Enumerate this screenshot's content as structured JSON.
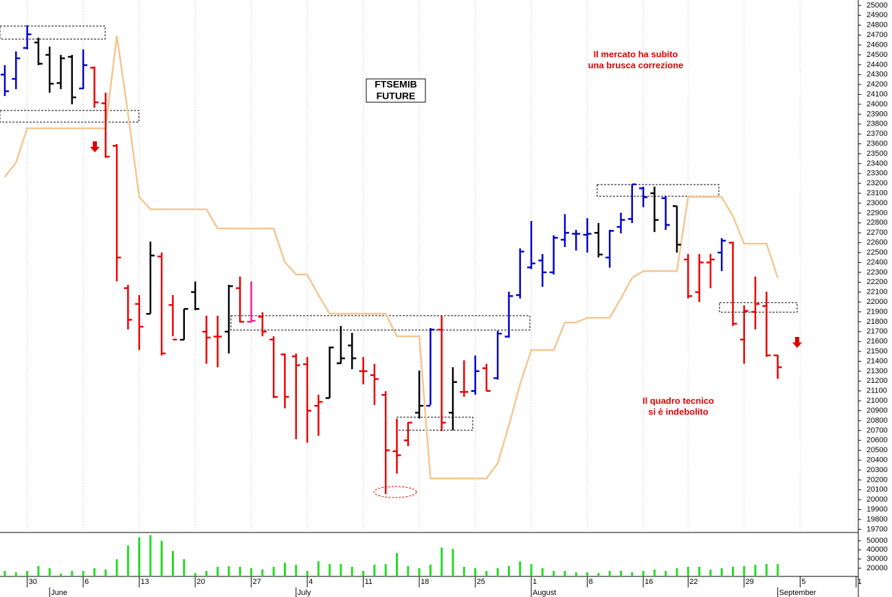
{
  "chart_data": {
    "type": "ohlc",
    "categories": [
      null,
      null,
      "30",
      null,
      null,
      null,
      null,
      "6",
      null,
      null,
      null,
      null,
      "13",
      null,
      null,
      null,
      null,
      "20",
      null,
      null,
      null,
      null,
      "27",
      null,
      null,
      null,
      null,
      "4",
      null,
      null,
      null,
      null,
      "11",
      null,
      null,
      null,
      null,
      "18",
      null,
      null,
      null,
      null,
      "25",
      null,
      null,
      null,
      null,
      "1",
      null,
      null,
      null,
      null,
      "8",
      null,
      null,
      null,
      null,
      "16",
      null,
      null,
      null,
      "22",
      null,
      null,
      null,
      null,
      "29",
      null,
      null,
      null,
      null,
      "5",
      null,
      null,
      null,
      null,
      "1"
    ],
    "months": [
      null,
      null,
      null,
      null,
      "June",
      null,
      null,
      null,
      null,
      null,
      null,
      null,
      null,
      null,
      null,
      null,
      null,
      null,
      null,
      null,
      null,
      null,
      null,
      null,
      null,
      null,
      "July",
      null,
      null,
      null,
      null,
      null,
      null,
      null,
      null,
      null,
      null,
      null,
      null,
      null,
      null,
      null,
      null,
      null,
      null,
      null,
      null,
      "August",
      null,
      null,
      null,
      null,
      null,
      null,
      null,
      null,
      null,
      null,
      null,
      null,
      null,
      null,
      null,
      null,
      null,
      null,
      null,
      null,
      null,
      "September",
      null,
      null,
      null,
      null,
      null,
      null,
      null
    ],
    "open": [
      24300,
      24257,
      24570,
      24625,
      24500,
      24215,
      24480,
      24160,
      24370,
      24010,
      23580,
      22140,
      21980,
      21880,
      22460,
      21970,
      21618,
      22100,
      21700,
      21650,
      21700,
      22140,
      21800,
      21850,
      21620,
      21470,
      21450,
      21370,
      20950,
      21028,
      21380,
      21560,
      21300,
      21260,
      21060,
      20490,
      20600,
      20880,
      20950,
      21720,
      20880,
      21090,
      21100,
      21330,
      21230,
      21650,
      22070,
      22350,
      22420,
      22300,
      22630,
      22690,
      22680,
      22700,
      22450,
      22760,
      22840,
      23150,
      23100,
      23050,
      22970,
      22430,
      22100,
      22400,
      22500,
      22600,
      21620,
      21900,
      21960,
      21460,
      null,
      null,
      null,
      null,
      null,
      null,
      null
    ],
    "high": [
      24396,
      24535,
      24799,
      24674,
      24583,
      24500,
      24500,
      24556,
      24382,
      24118,
      23597,
      22174,
      22070,
      22611,
      22500,
      22070,
      21930,
      22208,
      21861,
      21861,
      22174,
      22257,
      22208,
      21896,
      21653,
      21479,
      21479,
      21444,
      21062,
      21549,
      21757,
      21688,
      21444,
      21375,
      21097,
      20820,
      20785,
      21306,
      21736,
      21861,
      21340,
      21410,
      21458,
      21375,
      21708,
      22104,
      22542,
      22820,
      22486,
      22674,
      22889,
      22729,
      22847,
      22799,
      22729,
      22903,
      23194,
      23167,
      23167,
      23076,
      22972,
      22486,
      22486,
      22486,
      22646,
      22611,
      21965,
      22257,
      22104,
      21465,
      null,
      null,
      null,
      null,
      null,
      null,
      null
    ],
    "low": [
      24083,
      24153,
      24556,
      24396,
      24118,
      24153,
      24000,
      24153,
      23965,
      23458,
      22208,
      21722,
      21514,
      21882,
      21458,
      21653,
      21618,
      21917,
      21375,
      21340,
      21479,
      21792,
      21792,
      21653,
      21028,
      20924,
      20611,
      20576,
      20646,
      21028,
      21375,
      21320,
      21167,
      20958,
      20056,
      20264,
      20542,
      20820,
      20958,
      20695,
      20702,
      21042,
      21062,
      21097,
      21215,
      21639,
      22035,
      22333,
      22153,
      22278,
      22556,
      22521,
      22500,
      22451,
      22347,
      22694,
      22799,
      22958,
      22708,
      22729,
      22500,
      22035,
      22000,
      22139,
      22312,
      21757,
      21375,
      21722,
      21444,
      21222,
      null,
      null,
      null,
      null,
      null,
      null,
      null
    ],
    "close": [
      24132,
      24465,
      24708,
      24410,
      24208,
      24465,
      24070,
      24396,
      24020,
      23470,
      22450,
      21820,
      21750,
      22470,
      21480,
      21620,
      21930,
      21930,
      21640,
      21650,
      22160,
      21800,
      21810,
      21700,
      21040,
      21040,
      21360,
      20900,
      20990,
      21540,
      21430,
      21430,
      21300,
      21220,
      20500,
      20450,
      20780,
      20950,
      21720,
      20780,
      21190,
      21090,
      21300,
      21100,
      21680,
      22060,
      22510,
      22390,
      22300,
      22650,
      22700,
      22690,
      22690,
      22480,
      22720,
      22830,
      23190,
      23060,
      22830,
      22780,
      22580,
      22060,
      22400,
      22430,
      22620,
      21780,
      21910,
      21980,
      21460,
      21340,
      null,
      null,
      null,
      null,
      null,
      null,
      null
    ],
    "bar_colors": [
      "#0000cc",
      "#0000cc",
      "#0000cc",
      "#000000",
      "#000000",
      "#000000",
      "#000000",
      "#0000cc",
      "#ee0000",
      "#ee0000",
      "#ee0000",
      "#ee0000",
      "#ee0000",
      "#000000",
      "#ee0000",
      "#ee0000",
      "#000000",
      "#000000",
      "#ee0000",
      "#ee0000",
      "#000000",
      "#ee0000",
      "#ff1a8c",
      "#ee0000",
      "#ee0000",
      "#ee0000",
      "#ee0000",
      "#ee0000",
      "#ee0000",
      "#000000",
      "#000000",
      "#000000",
      "#ee0000",
      "#ee0000",
      "#ee0000",
      "#ee0000",
      "#ee0000",
      "#000000",
      "#0000cc",
      "#ee0000",
      "#000000",
      "#ee0000",
      "#0000cc",
      "#ee0000",
      "#0000cc",
      "#0000cc",
      "#0000cc",
      "#0000cc",
      "#0000cc",
      "#0000cc",
      "#0000cc",
      "#0000cc",
      "#0000cc",
      "#000000",
      "#0000cc",
      "#0000cc",
      "#0000cc",
      "#0000cc",
      "#000000",
      "#0000cc",
      "#000000",
      "#ee0000",
      "#ee0000",
      "#ee0000",
      "#0000cc",
      "#ee0000",
      "#ee0000",
      "#ee0000",
      "#ee0000",
      "#ee0000",
      null,
      null,
      null,
      null,
      null,
      null,
      null
    ],
    "line": {
      "color": "#f7c590",
      "values": [
        23264,
        23410,
        23757,
        23757,
        23757,
        23757,
        23757,
        23757,
        23757,
        23757,
        24694,
        23903,
        23063,
        22938,
        22938,
        22938,
        22938,
        22938,
        22938,
        22743,
        22743,
        22743,
        22743,
        22743,
        22743,
        22403,
        22278,
        22278,
        22069,
        21882,
        21882,
        21882,
        21882,
        21882,
        21882,
        21653,
        21653,
        21653,
        20215,
        20215,
        20215,
        20215,
        20215,
        20215,
        20368,
        20750,
        21167,
        21514,
        21514,
        21514,
        21792,
        21792,
        21840,
        21840,
        21840,
        22035,
        22243,
        22313,
        22313,
        22313,
        22313,
        23063,
        23063,
        23063,
        23063,
        22868,
        22590,
        22590,
        22590,
        22243,
        null,
        null,
        null,
        null,
        null,
        null,
        null
      ]
    },
    "ylim": [
      19675,
      25055
    ],
    "yticks": [
      25000,
      24900,
      24800,
      24700,
      24600,
      24500,
      24400,
      24300,
      24200,
      24100,
      24000,
      23900,
      23800,
      23700,
      23600,
      23500,
      23400,
      23300,
      23200,
      23100,
      23000,
      22900,
      22800,
      22700,
      22600,
      22500,
      22400,
      22300,
      22200,
      22100,
      22000,
      21900,
      21800,
      21700,
      21600,
      21500,
      21400,
      21300,
      21200,
      21100,
      21000,
      20900,
      20800,
      20700,
      20600,
      20500,
      20400,
      20300,
      20200,
      20100,
      20000,
      19900,
      19800,
      19700
    ],
    "volume": {
      "color": "#22dd22",
      "values": [
        17000,
        15500,
        17000,
        22250,
        20000,
        14000,
        17000,
        17000,
        20000,
        18500,
        29750,
        44750,
        53750,
        56000,
        50000,
        38750,
        29750,
        14750,
        17000,
        21500,
        22250,
        21500,
        20000,
        18500,
        21500,
        26000,
        23750,
        17000,
        27500,
        24500,
        24500,
        21500,
        17000,
        23750,
        24500,
        36500,
        22250,
        20000,
        23750,
        42500,
        41000,
        21500,
        20000,
        17000,
        20000,
        22250,
        27500,
        24500,
        20000,
        17000,
        17000,
        15500,
        15500,
        14750,
        17000,
        17000,
        15500,
        17000,
        18500,
        17000,
        20000,
        21500,
        21500,
        18500,
        20000,
        21500,
        22250,
        23750,
        24500,
        24500,
        null,
        null,
        null,
        null,
        null,
        null,
        null
      ],
      "ylim": [
        11000,
        58250
      ],
      "yticks": [
        20000,
        30000,
        40000,
        50000
      ]
    },
    "title_box": [
      "FTSEMIB",
      "FUTURE"
    ],
    "annotations": [
      "Il mercato ha subito",
      "una brusca correzione",
      "Il quadro tecnico",
      "si è indebolito"
    ]
  }
}
